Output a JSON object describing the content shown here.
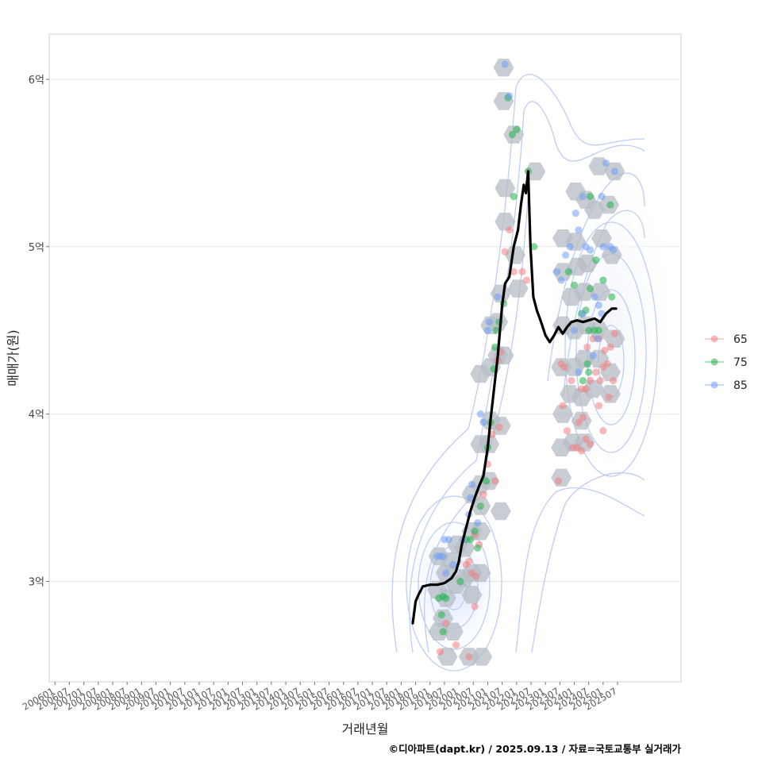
{
  "chart_data": {
    "type": "scatter",
    "xlabel": "거래년월",
    "ylabel": "매매가(원)",
    "caption": "©디아파트(dapt.kr) / 2025.09.13 / 자료=국토교통부 실거래가",
    "y_ticks": [
      {
        "value": 3.0,
        "label": "3억"
      },
      {
        "value": 4.0,
        "label": "4억"
      },
      {
        "value": 5.0,
        "label": "5억"
      },
      {
        "value": 6.0,
        "label": "6억"
      }
    ],
    "ylim": [
      2.4,
      6.27
    ],
    "xlim": [
      2005.8,
      2027.7
    ],
    "x_ticks": [
      "200601",
      "200607",
      "200701",
      "200707",
      "200801",
      "200807",
      "200901",
      "200907",
      "201001",
      "201007",
      "201101",
      "201107",
      "201201",
      "201207",
      "201301",
      "201307",
      "201401",
      "201407",
      "201501",
      "201507",
      "201601",
      "201607",
      "201701",
      "201707",
      "201801",
      "201807",
      "201901",
      "201907",
      "202001",
      "202007",
      "202101",
      "202107",
      "202201",
      "202207",
      "202301",
      "202307",
      "202401",
      "202407",
      "202501",
      "202507"
    ],
    "legend": [
      {
        "label": "65",
        "color": "#f08080"
      },
      {
        "label": "75",
        "color": "#22b24c"
      },
      {
        "label": "85",
        "color": "#6f9ef5"
      }
    ],
    "trend_line": {
      "name": "moving average",
      "color": "#000000",
      "points": [
        [
          2018.4,
          2.75
        ],
        [
          2018.5,
          2.88
        ],
        [
          2018.6,
          2.92
        ],
        [
          2018.75,
          2.97
        ],
        [
          2019.0,
          2.98
        ],
        [
          2019.25,
          2.98
        ],
        [
          2019.5,
          2.99
        ],
        [
          2019.75,
          3.02
        ],
        [
          2019.9,
          3.06
        ],
        [
          2020.0,
          3.12
        ],
        [
          2020.1,
          3.22
        ],
        [
          2020.25,
          3.32
        ],
        [
          2020.4,
          3.42
        ],
        [
          2020.55,
          3.5
        ],
        [
          2020.7,
          3.57
        ],
        [
          2020.85,
          3.63
        ],
        [
          2021.0,
          3.8
        ],
        [
          2021.1,
          3.97
        ],
        [
          2021.2,
          4.12
        ],
        [
          2021.35,
          4.35
        ],
        [
          2021.5,
          4.65
        ],
        [
          2021.6,
          4.78
        ],
        [
          2021.75,
          4.82
        ],
        [
          2021.9,
          5.0
        ],
        [
          2022.05,
          5.1
        ],
        [
          2022.15,
          5.25
        ],
        [
          2022.25,
          5.37
        ],
        [
          2022.32,
          5.32
        ],
        [
          2022.4,
          5.45
        ],
        [
          2022.48,
          5.0
        ],
        [
          2022.58,
          4.7
        ],
        [
          2022.7,
          4.62
        ],
        [
          2022.85,
          4.55
        ],
        [
          2023.0,
          4.47
        ],
        [
          2023.15,
          4.43
        ],
        [
          2023.3,
          4.47
        ],
        [
          2023.45,
          4.52
        ],
        [
          2023.6,
          4.48
        ],
        [
          2023.75,
          4.52
        ],
        [
          2023.9,
          4.55
        ],
        [
          2024.1,
          4.56
        ],
        [
          2024.3,
          4.55
        ],
        [
          2024.5,
          4.56
        ],
        [
          2024.7,
          4.57
        ],
        [
          2024.9,
          4.55
        ],
        [
          2025.1,
          4.6
        ],
        [
          2025.3,
          4.63
        ],
        [
          2025.45,
          4.63
        ]
      ]
    },
    "hexbins": [
      [
        2021.55,
        6.07
      ],
      [
        2021.55,
        5.87
      ],
      [
        2021.9,
        5.67
      ],
      [
        2021.6,
        5.35
      ],
      [
        2022.65,
        5.45
      ],
      [
        2021.6,
        5.15
      ],
      [
        2021.95,
        4.95
      ],
      [
        2022.05,
        4.75
      ],
      [
        2021.45,
        4.72
      ],
      [
        2021.1,
        4.53
      ],
      [
        2021.35,
        4.55
      ],
      [
        2021.35,
        4.35
      ],
      [
        2021.55,
        4.35
      ],
      [
        2020.75,
        4.24
      ],
      [
        2021.1,
        4.28
      ],
      [
        2021.1,
        3.96
      ],
      [
        2021.45,
        3.93
      ],
      [
        2020.75,
        3.82
      ],
      [
        2021.05,
        3.82
      ],
      [
        2021.05,
        3.6
      ],
      [
        2020.75,
        3.58
      ],
      [
        2021.45,
        3.42
      ],
      [
        2020.45,
        3.52
      ],
      [
        2020.75,
        3.45
      ],
      [
        2020.45,
        3.3
      ],
      [
        2020.75,
        3.3
      ],
      [
        2020.2,
        3.2
      ],
      [
        2019.95,
        3.22
      ],
      [
        2019.75,
        3.12
      ],
      [
        2019.55,
        3.05
      ],
      [
        2019.3,
        3.15
      ],
      [
        2019.25,
        2.95
      ],
      [
        2019.55,
        2.9
      ],
      [
        2019.9,
        2.98
      ],
      [
        2020.2,
        3.02
      ],
      [
        2020.45,
        3.05
      ],
      [
        2020.75,
        3.05
      ],
      [
        2020.45,
        2.92
      ],
      [
        2019.45,
        2.78
      ],
      [
        2019.3,
        2.7
      ],
      [
        2019.6,
        2.55
      ],
      [
        2020.35,
        2.55
      ],
      [
        2020.8,
        2.55
      ],
      [
        2019.8,
        2.7
      ],
      [
        2024.85,
        5.48
      ],
      [
        2025.4,
        5.45
      ],
      [
        2024.05,
        5.33
      ],
      [
        2024.4,
        5.28
      ],
      [
        2024.7,
        5.22
      ],
      [
        2025.2,
        5.25
      ],
      [
        2023.6,
        5.05
      ],
      [
        2024.05,
        5.03
      ],
      [
        2024.95,
        5.05
      ],
      [
        2023.6,
        4.85
      ],
      [
        2024.1,
        4.88
      ],
      [
        2024.45,
        4.9
      ],
      [
        2025.3,
        4.95
      ],
      [
        2023.9,
        4.7
      ],
      [
        2024.35,
        4.73
      ],
      [
        2024.9,
        4.73
      ],
      [
        2023.6,
        4.53
      ],
      [
        2024.0,
        4.5
      ],
      [
        2024.4,
        4.53
      ],
      [
        2024.85,
        4.5
      ],
      [
        2025.4,
        4.45
      ],
      [
        2023.55,
        4.28
      ],
      [
        2024.0,
        4.28
      ],
      [
        2024.35,
        4.33
      ],
      [
        2024.85,
        4.33
      ],
      [
        2025.25,
        4.25
      ],
      [
        2023.85,
        4.12
      ],
      [
        2024.25,
        4.1
      ],
      [
        2024.65,
        4.15
      ],
      [
        2025.25,
        4.12
      ],
      [
        2023.6,
        4.0
      ],
      [
        2024.25,
        3.96
      ],
      [
        2023.55,
        3.8
      ],
      [
        2023.95,
        3.83
      ],
      [
        2024.35,
        3.83
      ],
      [
        2023.55,
        3.62
      ]
    ],
    "series": [
      {
        "name": "65",
        "color": "#f08080",
        "points": [
          [
            2019.35,
            2.58
          ],
          [
            2019.55,
            2.75
          ],
          [
            2019.9,
            2.62
          ],
          [
            2020.35,
            2.55
          ],
          [
            2020.55,
            2.85
          ],
          [
            2020.45,
            3.05
          ],
          [
            2020.6,
            3.03
          ],
          [
            2020.25,
            3.1
          ],
          [
            2020.35,
            3.12
          ],
          [
            2020.7,
            3.22
          ],
          [
            2020.55,
            3.28
          ],
          [
            2020.85,
            3.52
          ],
          [
            2021.0,
            3.7
          ],
          [
            2021.15,
            3.88
          ],
          [
            2021.4,
            3.92
          ],
          [
            2021.25,
            3.6
          ],
          [
            2021.35,
            4.32
          ],
          [
            2021.45,
            4.37
          ],
          [
            2021.6,
            4.97
          ],
          [
            2021.75,
            5.1
          ],
          [
            2022.2,
            4.85
          ],
          [
            2022.35,
            4.8
          ],
          [
            2021.9,
            4.85
          ],
          [
            2023.45,
            3.6
          ],
          [
            2023.6,
            4.05
          ],
          [
            2023.75,
            3.9
          ],
          [
            2023.55,
            4.3
          ],
          [
            2023.65,
            4.28
          ],
          [
            2023.9,
            4.2
          ],
          [
            2023.95,
            3.8
          ],
          [
            2024.1,
            3.8
          ],
          [
            2024.25,
            3.78
          ],
          [
            2024.15,
            3.95
          ],
          [
            2024.3,
            3.98
          ],
          [
            2024.4,
            3.85
          ],
          [
            2024.55,
            3.82
          ],
          [
            2024.25,
            4.15
          ],
          [
            2024.4,
            4.15
          ],
          [
            2024.55,
            4.2
          ],
          [
            2024.75,
            4.25
          ],
          [
            2024.9,
            4.2
          ],
          [
            2025.0,
            4.28
          ],
          [
            2025.15,
            4.3
          ],
          [
            2024.45,
            4.4
          ],
          [
            2024.65,
            4.45
          ],
          [
            2024.85,
            4.45
          ],
          [
            2025.05,
            4.38
          ],
          [
            2025.25,
            4.4
          ],
          [
            2025.4,
            4.48
          ],
          [
            2025.2,
            4.1
          ],
          [
            2025.0,
            3.9
          ],
          [
            2024.85,
            4.05
          ],
          [
            2025.35,
            4.2
          ]
        ]
      },
      {
        "name": "75",
        "color": "#22b24c",
        "points": [
          [
            2019.3,
            2.9
          ],
          [
            2019.45,
            2.91
          ],
          [
            2019.55,
            2.9
          ],
          [
            2019.4,
            2.8
          ],
          [
            2019.45,
            2.7
          ],
          [
            2020.05,
            3.0
          ],
          [
            2020.25,
            3.25
          ],
          [
            2020.4,
            3.25
          ],
          [
            2020.55,
            3.3
          ],
          [
            2020.65,
            3.2
          ],
          [
            2020.75,
            3.45
          ],
          [
            2020.95,
            3.6
          ],
          [
            2021.0,
            3.8
          ],
          [
            2021.1,
            3.95
          ],
          [
            2021.2,
            4.27
          ],
          [
            2021.25,
            4.4
          ],
          [
            2021.3,
            4.5
          ],
          [
            2021.4,
            4.55
          ],
          [
            2021.55,
            4.66
          ],
          [
            2021.7,
            5.89
          ],
          [
            2022.0,
            5.7
          ],
          [
            2021.85,
            5.67
          ],
          [
            2021.9,
            5.3
          ],
          [
            2022.4,
            5.45
          ],
          [
            2022.6,
            5.0
          ],
          [
            2023.8,
            4.85
          ],
          [
            2024.0,
            4.77
          ],
          [
            2024.25,
            4.6
          ],
          [
            2024.4,
            4.62
          ],
          [
            2024.5,
            4.5
          ],
          [
            2024.7,
            4.5
          ],
          [
            2024.85,
            4.5
          ],
          [
            2024.55,
            4.75
          ],
          [
            2024.75,
            4.92
          ],
          [
            2024.55,
            5.3
          ],
          [
            2024.5,
            4.25
          ],
          [
            2024.45,
            4.3
          ],
          [
            2025.0,
            4.8
          ],
          [
            2025.25,
            5.25
          ],
          [
            2025.3,
            4.7
          ],
          [
            2024.3,
            4.2
          ]
        ]
      },
      {
        "name": "85",
        "color": "#6f9ef5",
        "points": [
          [
            2019.25,
            3.15
          ],
          [
            2019.35,
            3.15
          ],
          [
            2019.45,
            3.15
          ],
          [
            2019.5,
            3.25
          ],
          [
            2019.65,
            3.25
          ],
          [
            2019.8,
            3.1
          ],
          [
            2019.55,
            3.05
          ],
          [
            2020.15,
            3.25
          ],
          [
            2020.35,
            3.4
          ],
          [
            2020.4,
            3.5
          ],
          [
            2020.45,
            3.58
          ],
          [
            2020.65,
            3.35
          ],
          [
            2020.75,
            4.0
          ],
          [
            2020.85,
            3.95
          ],
          [
            2021.0,
            4.5
          ],
          [
            2021.05,
            4.55
          ],
          [
            2021.35,
            4.7
          ],
          [
            2021.6,
            6.09
          ],
          [
            2021.75,
            5.9
          ],
          [
            2023.4,
            4.85
          ],
          [
            2023.55,
            4.8
          ],
          [
            2023.7,
            4.95
          ],
          [
            2023.85,
            5.0
          ],
          [
            2024.05,
            5.2
          ],
          [
            2024.3,
            5.3
          ],
          [
            2024.15,
            5.1
          ],
          [
            2024.4,
            5.0
          ],
          [
            2024.55,
            4.98
          ],
          [
            2024.7,
            4.7
          ],
          [
            2024.85,
            4.65
          ],
          [
            2024.95,
            4.6
          ],
          [
            2025.0,
            5.0
          ],
          [
            2025.25,
            5.0
          ],
          [
            2025.35,
            4.98
          ],
          [
            2025.1,
            5.5
          ],
          [
            2025.4,
            5.45
          ],
          [
            2024.95,
            5.3
          ],
          [
            2024.0,
            4.5
          ],
          [
            2024.65,
            4.35
          ],
          [
            2024.15,
            4.25
          ],
          [
            2024.8,
            4.45
          ],
          [
            2024.3,
            4.6
          ]
        ]
      }
    ]
  }
}
